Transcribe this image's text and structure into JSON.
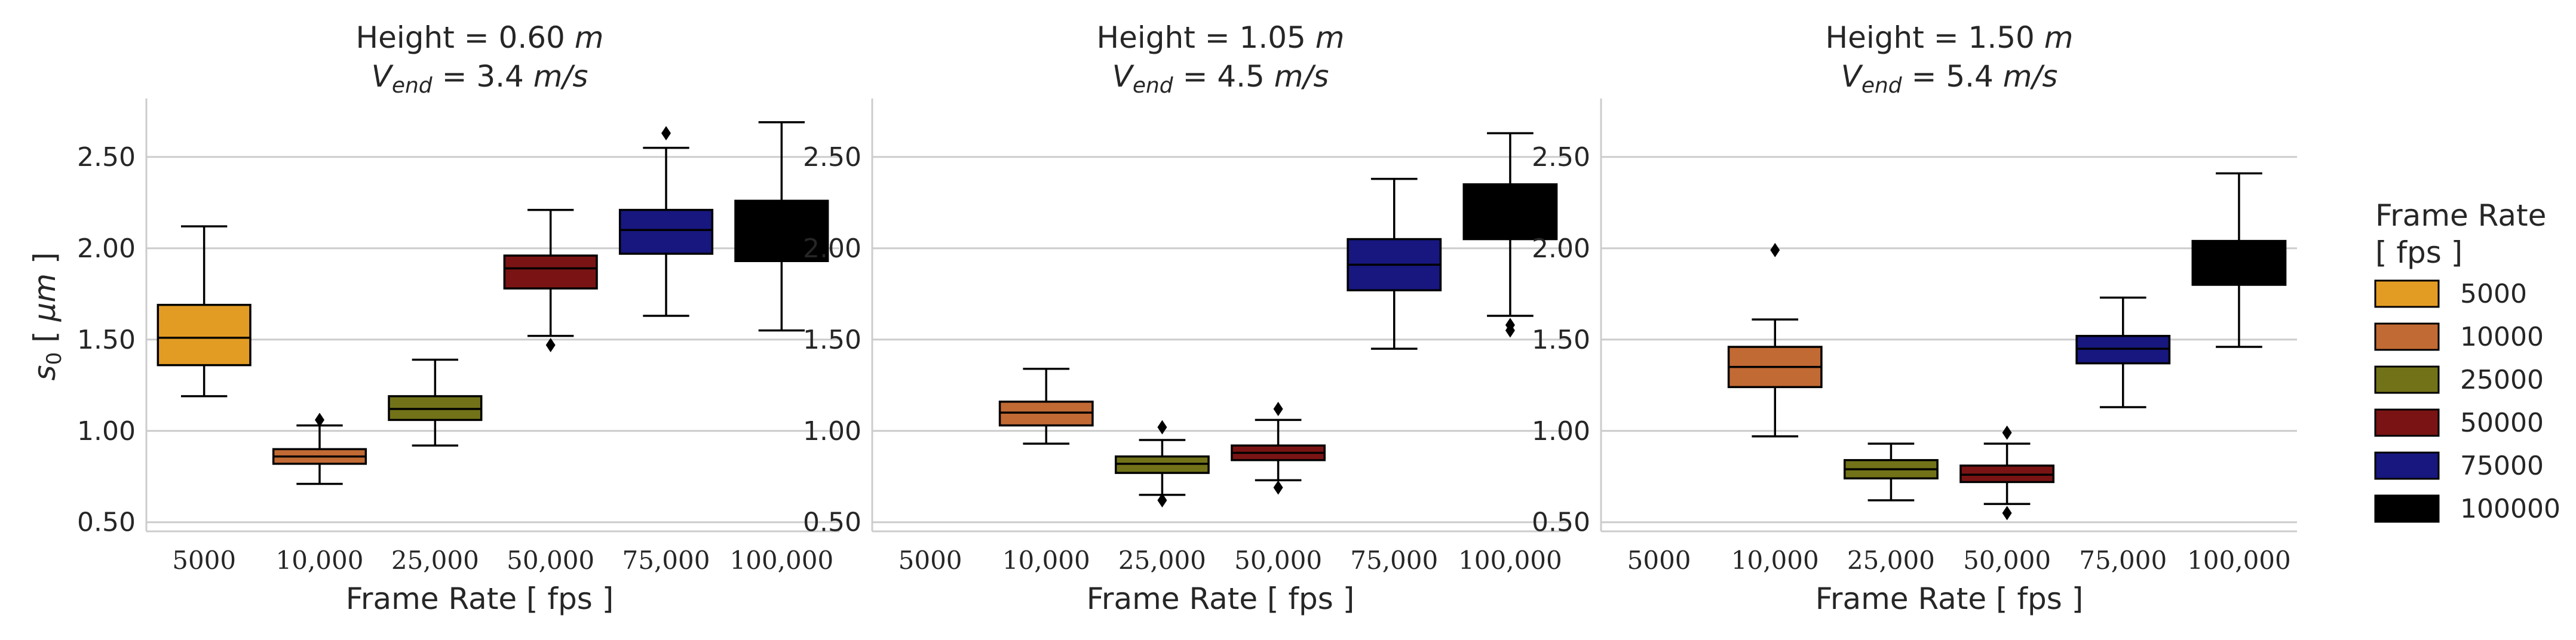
{
  "chart_data": {
    "type": "box",
    "ylabel": "s0 [ μm ]",
    "ylabel_main": "s",
    "ylabel_sub": "0",
    "ylabel_unit_open": " [ ",
    "ylabel_unit": "μm",
    "ylabel_unit_close": " ]",
    "xlabel": "Frame Rate [ fps ]",
    "ylim": [
      0.45,
      2.82
    ],
    "yticks": [
      0.5,
      1.0,
      1.5,
      2.0,
      2.5
    ],
    "ytick_labels": [
      "0.50",
      "1.00",
      "1.50",
      "2.00",
      "2.50"
    ],
    "categories": [
      "5000",
      "10,000",
      "25,000",
      "50,000",
      "75,000",
      "100,000"
    ],
    "grid": "horizontal",
    "legend": {
      "placement": "right",
      "title_line1": "Frame Rate",
      "title_line2": "[ fps ]",
      "entries": [
        "5000",
        "10000",
        "25000",
        "50000",
        "75000",
        "100000"
      ],
      "colors": [
        "#e39c23",
        "#c26a34",
        "#727318",
        "#7a1414",
        "#17177f",
        "#000000"
      ]
    },
    "panels": [
      {
        "title_line1": "Height = 0.60 ",
        "title_unit": "m",
        "title_v": "V",
        "title_v_sub": "end",
        "title_line2_value": " = 3.4 ",
        "title_line2_unit": "m/s",
        "boxes": [
          {
            "category": "5000",
            "whislo": 1.19,
            "q1": 1.36,
            "med": 1.51,
            "q3": 1.69,
            "whishi": 2.12,
            "fliers": []
          },
          {
            "category": "10,000",
            "whislo": 0.71,
            "q1": 0.82,
            "med": 0.86,
            "q3": 0.9,
            "whishi": 1.03,
            "fliers": [
              1.06
            ]
          },
          {
            "category": "25,000",
            "whislo": 0.92,
            "q1": 1.06,
            "med": 1.12,
            "q3": 1.19,
            "whishi": 1.39,
            "fliers": []
          },
          {
            "category": "50,000",
            "whislo": 1.52,
            "q1": 1.78,
            "med": 1.89,
            "q3": 1.96,
            "whishi": 2.21,
            "fliers": [
              1.47
            ]
          },
          {
            "category": "75,000",
            "whislo": 1.63,
            "q1": 1.97,
            "med": 2.1,
            "q3": 2.21,
            "whishi": 2.55,
            "fliers": [
              2.63
            ]
          },
          {
            "category": "100,000",
            "whislo": 1.55,
            "q1": 1.93,
            "med": 2.1,
            "q3": 2.26,
            "whishi": 2.69,
            "fliers": []
          }
        ]
      },
      {
        "title_line1": "Height = 1.05 ",
        "title_unit": "m",
        "title_v": "V",
        "title_v_sub": "end",
        "title_line2_value": " = 4.5 ",
        "title_line2_unit": "m/s",
        "boxes": [
          {
            "category": "5000",
            "whislo": null,
            "q1": null,
            "med": null,
            "q3": null,
            "whishi": null,
            "fliers": []
          },
          {
            "category": "10,000",
            "whislo": 0.93,
            "q1": 1.03,
            "med": 1.1,
            "q3": 1.16,
            "whishi": 1.34,
            "fliers": []
          },
          {
            "category": "25,000",
            "whislo": 0.65,
            "q1": 0.77,
            "med": 0.82,
            "q3": 0.86,
            "whishi": 0.95,
            "fliers": [
              1.02,
              0.62
            ]
          },
          {
            "category": "50,000",
            "whislo": 0.73,
            "q1": 0.84,
            "med": 0.88,
            "q3": 0.92,
            "whishi": 1.06,
            "fliers": [
              1.12,
              0.69
            ]
          },
          {
            "category": "75,000",
            "whislo": 1.45,
            "q1": 1.77,
            "med": 1.91,
            "q3": 2.05,
            "whishi": 2.38,
            "fliers": []
          },
          {
            "category": "100,000",
            "whislo": 1.63,
            "q1": 2.05,
            "med": 2.2,
            "q3": 2.35,
            "whishi": 2.63,
            "fliers": [
              1.55,
              1.58
            ]
          }
        ]
      },
      {
        "title_line1": "Height = 1.50 ",
        "title_unit": "m",
        "title_v": "V",
        "title_v_sub": "end",
        "title_line2_value": " = 5.4 ",
        "title_line2_unit": "m/s",
        "boxes": [
          {
            "category": "5000",
            "whislo": null,
            "q1": null,
            "med": null,
            "q3": null,
            "whishi": null,
            "fliers": []
          },
          {
            "category": "10,000",
            "whislo": 0.97,
            "q1": 1.24,
            "med": 1.35,
            "q3": 1.46,
            "whishi": 1.61,
            "fliers": [
              1.99
            ]
          },
          {
            "category": "25,000",
            "whislo": 0.62,
            "q1": 0.74,
            "med": 0.79,
            "q3": 0.84,
            "whishi": 0.93,
            "fliers": []
          },
          {
            "category": "50,000",
            "whislo": 0.6,
            "q1": 0.72,
            "med": 0.76,
            "q3": 0.81,
            "whishi": 0.93,
            "fliers": [
              0.99,
              0.55
            ]
          },
          {
            "category": "75,000",
            "whislo": 1.13,
            "q1": 1.37,
            "med": 1.45,
            "q3": 1.52,
            "whishi": 1.73,
            "fliers": []
          },
          {
            "category": "100,000",
            "whislo": 1.46,
            "q1": 1.8,
            "med": 1.93,
            "q3": 2.04,
            "whishi": 2.41,
            "fliers": []
          }
        ]
      }
    ]
  }
}
